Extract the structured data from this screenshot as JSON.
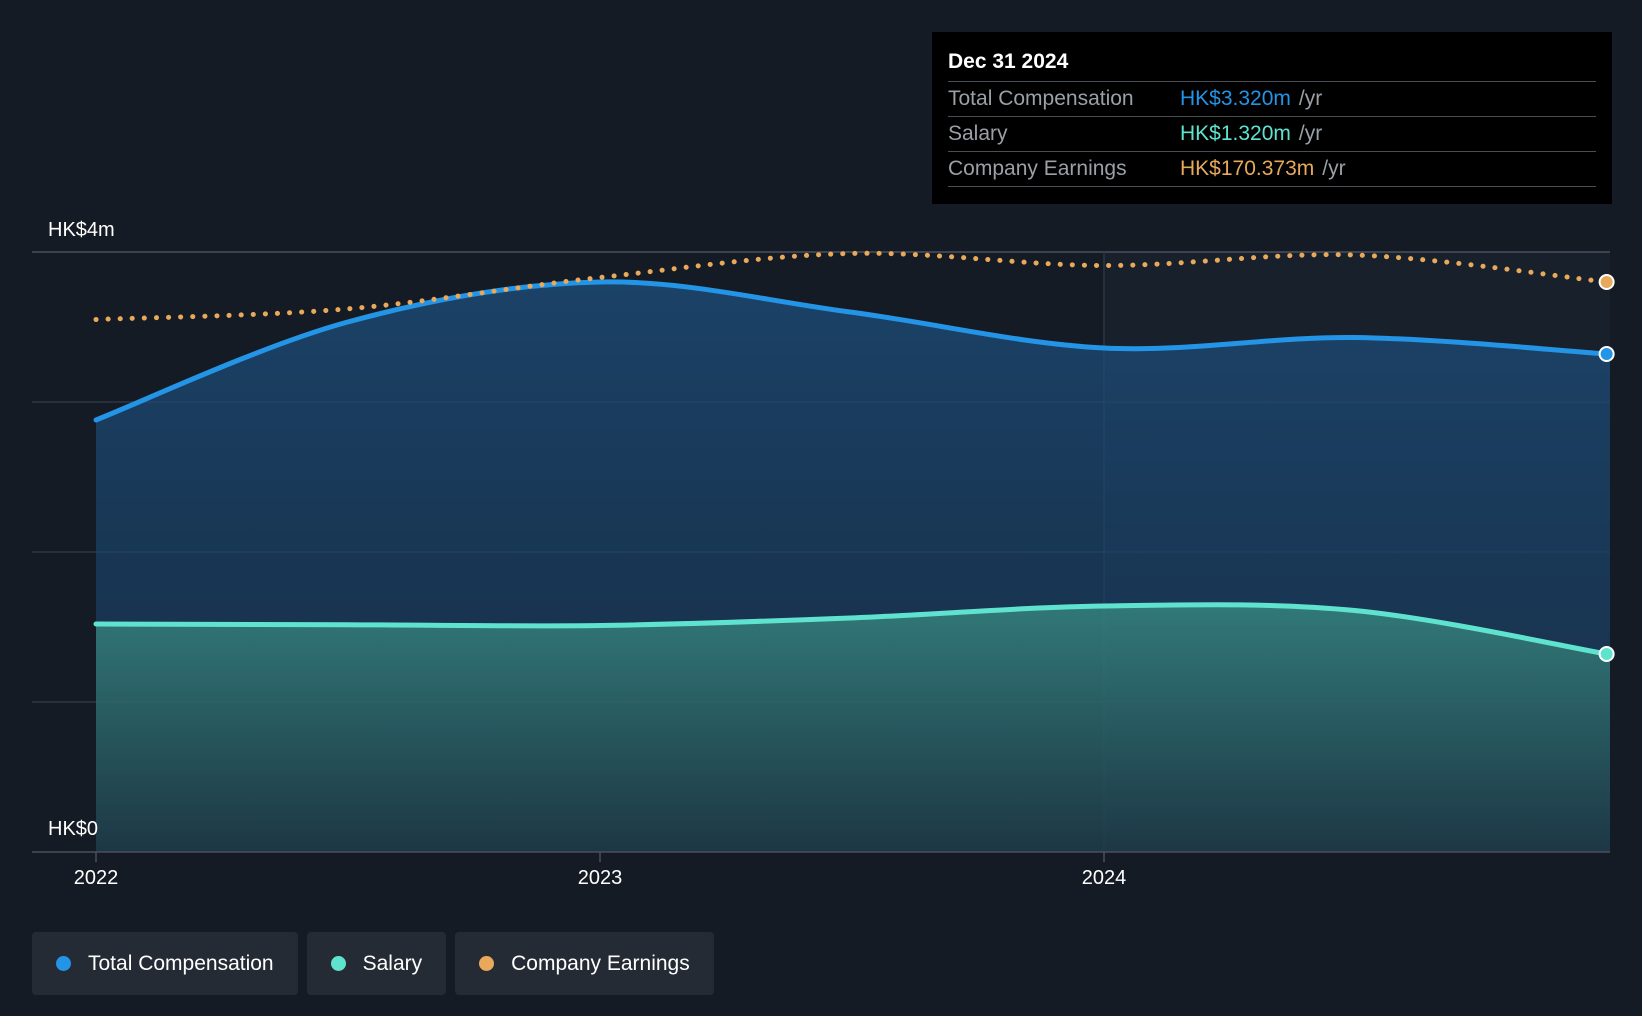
{
  "colors": {
    "background": "#151b24",
    "total_compensation": "#2394e6",
    "salary": "#5fe3cf",
    "company_earnings": "#e8a95a"
  },
  "tooltip": {
    "date": "Dec 31 2024",
    "rows": [
      {
        "name": "Total Compensation",
        "value": "HK$3.320m",
        "unit": "/yr",
        "color": "#2394e6"
      },
      {
        "name": "Salary",
        "value": "HK$1.320m",
        "unit": "/yr",
        "color": "#5fe3cf"
      },
      {
        "name": "Company Earnings",
        "value": "HK$170.373m",
        "unit": "/yr",
        "color": "#e8a95a"
      }
    ]
  },
  "legend": [
    {
      "label": "Total Compensation",
      "color": "#2394e6"
    },
    {
      "label": "Salary",
      "color": "#5fe3cf"
    },
    {
      "label": "Company Earnings",
      "color": "#e8a95a"
    }
  ],
  "chart_data": {
    "type": "area",
    "x_ticks": [
      "2022",
      "2023",
      "2024"
    ],
    "y_tick_labels": [
      "HK$4m",
      "HK$0"
    ],
    "ylim": [
      0,
      4
    ],
    "y_unit": "HK$m",
    "grid": true,
    "legend_position": "bottom-left",
    "series": [
      {
        "name": "Total Compensation",
        "fill": true,
        "points": [
          {
            "x": "2022-01-01",
            "y": 2.88
          },
          {
            "x": "2022-07-01",
            "y": 3.53
          },
          {
            "x": "2023-01-01",
            "y": 3.8
          },
          {
            "x": "2023-07-01",
            "y": 3.6
          },
          {
            "x": "2024-01-01",
            "y": 3.36
          },
          {
            "x": "2024-07-01",
            "y": 3.43
          },
          {
            "x": "2024-12-31",
            "y": 3.32
          }
        ]
      },
      {
        "name": "Salary",
        "fill": true,
        "points": [
          {
            "x": "2022-01-01",
            "y": 1.52
          },
          {
            "x": "2022-07-01",
            "y": 1.515
          },
          {
            "x": "2023-01-01",
            "y": 1.51
          },
          {
            "x": "2023-07-01",
            "y": 1.56
          },
          {
            "x": "2024-01-01",
            "y": 1.64
          },
          {
            "x": "2024-07-01",
            "y": 1.61
          },
          {
            "x": "2024-12-31",
            "y": 1.32
          }
        ]
      },
      {
        "name": "Company Earnings",
        "fill": false,
        "dotted": true,
        "points": [
          {
            "x": "2022-01-01",
            "y": 3.55
          },
          {
            "x": "2022-07-01",
            "y": 3.62
          },
          {
            "x": "2023-01-01",
            "y": 3.83
          },
          {
            "x": "2023-07-01",
            "y": 3.99
          },
          {
            "x": "2024-01-01",
            "y": 3.91
          },
          {
            "x": "2024-07-01",
            "y": 3.98
          },
          {
            "x": "2024-12-31",
            "y": 3.8
          }
        ]
      }
    ]
  }
}
